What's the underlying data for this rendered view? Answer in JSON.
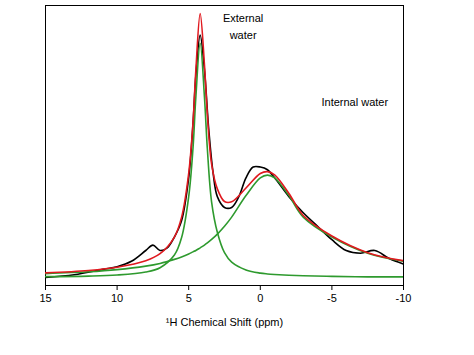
{
  "chart_data": {
    "type": "line",
    "x_label": "¹H Chemical Shift (ppm)",
    "xlim": [
      15,
      -10
    ],
    "xticks": [
      15,
      10,
      5,
      0,
      -5,
      -10
    ],
    "ylim": [
      0,
      104
    ],
    "yticks": [],
    "tick_labels": "x",
    "series": [
      {
        "color": "#000000",
        "x": [
          15,
          13,
          11,
          10,
          9,
          8,
          7.5,
          7,
          6.5,
          6,
          5.5,
          5,
          4.7,
          4.5,
          4.2,
          3.9,
          3.6,
          3.3,
          3,
          2.5,
          2,
          1.5,
          1,
          0.5,
          0,
          -0.5,
          -1,
          -2,
          -3,
          -4,
          -5,
          -6,
          -7,
          -8,
          -9,
          -10
        ],
        "values": [
          3,
          4,
          6,
          7,
          9,
          13,
          15,
          13,
          14,
          18,
          24,
          40,
          60,
          78,
          93,
          80,
          58,
          42,
          33,
          29,
          29,
          33,
          40,
          44,
          44,
          43,
          40,
          33,
          27,
          22,
          17,
          13,
          12,
          13,
          10,
          8
        ]
      },
      {
        "color": "#2e9a2e",
        "x": [
          15,
          12,
          10,
          8,
          7,
          6,
          5.5,
          5,
          4.7,
          4.5,
          4.2,
          3.9,
          3.7,
          3.4,
          3,
          2.5,
          2,
          1,
          0,
          -0.5,
          -1,
          -2,
          -3,
          -5,
          -7.5,
          -10
        ],
        "values": [
          3.3,
          3.5,
          3.9,
          5.0,
          6.6,
          11.3,
          17.7,
          33,
          51,
          70,
          90,
          70,
          51,
          31,
          19.8,
          12.2,
          8.7,
          5.8,
          4.6,
          4.3,
          4.1,
          3.8,
          3.6,
          3.4,
          3.2,
          3.2
        ]
      },
      {
        "color": "#2e9a2e",
        "x": [
          15,
          12,
          10,
          8,
          7,
          6,
          5.5,
          5,
          4.7,
          4.5,
          4.2,
          3.9,
          3.7,
          3.4,
          3,
          2.5,
          2,
          1,
          0,
          -0.5,
          -1,
          -2,
          -3,
          -5,
          -7.5,
          -10
        ],
        "values": [
          4.4,
          5.1,
          5.9,
          7.2,
          8.2,
          9.7,
          10.6,
          11.7,
          12.5,
          13,
          14,
          15,
          15.8,
          17.1,
          19.1,
          22,
          25.4,
          33.4,
          40,
          41,
          40,
          33.4,
          25.4,
          18,
          12,
          9
        ]
      },
      {
        "color": "#e0191f",
        "x": [
          15,
          12,
          10,
          8,
          7,
          6,
          5.5,
          5,
          4.7,
          4.5,
          4.2,
          3.9,
          3.7,
          3.4,
          3,
          2.5,
          2,
          1,
          0,
          -0.5,
          -1,
          -2,
          -3,
          -5,
          -7.5,
          -10
        ],
        "values": [
          4.7,
          5.6,
          6.8,
          9.2,
          11.8,
          18,
          25.3,
          41.7,
          60.5,
          80,
          101,
          82,
          63.8,
          45.1,
          35.9,
          31.2,
          31.1,
          36.2,
          41.6,
          42.3,
          41.1,
          34.2,
          26,
          18.4,
          12.2,
          9.2
        ]
      }
    ],
    "annotations": [
      {
        "text": "External",
        "x": 1.2,
        "y": 99
      },
      {
        "text": "water",
        "x": 1.2,
        "y": 93
      },
      {
        "text": "Internal water",
        "x": -6.6,
        "y": 68
      }
    ]
  }
}
